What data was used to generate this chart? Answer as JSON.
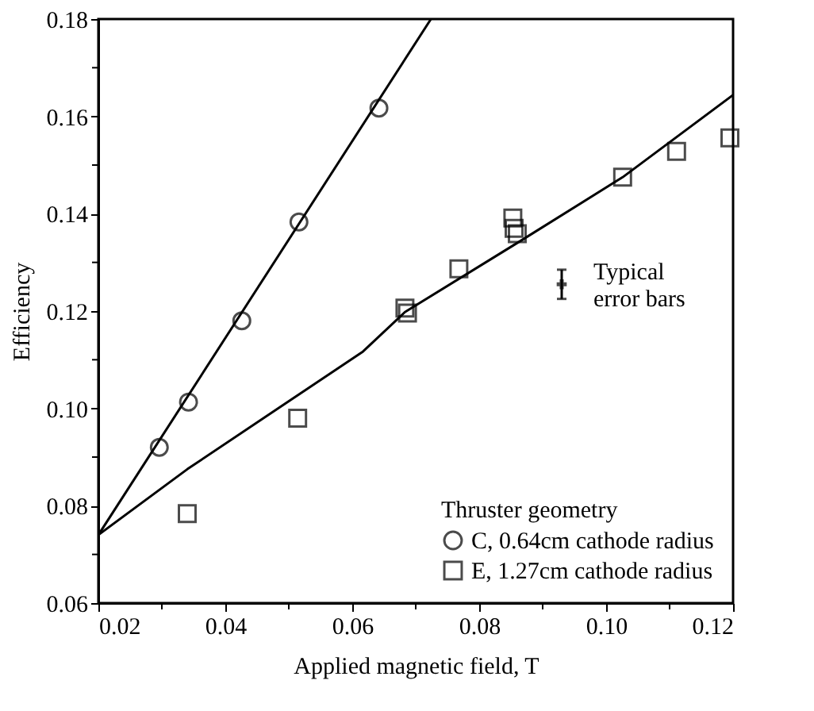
{
  "chart_data": {
    "type": "scatter",
    "xlabel": "Applied magnetic field, T",
    "ylabel": "Efficiency",
    "legend_title": "Thruster geometry",
    "legend": "bottom right",
    "xlim": [
      0.02,
      0.12
    ],
    "ylim": [
      0.06,
      0.18
    ],
    "xticks": [
      0.02,
      {
        "value": 0.03,
        "label": null
      },
      0.04,
      {
        "value": 0.05,
        "label": null
      },
      0.06,
      {
        "value": 0.07,
        "label": null
      },
      0.08,
      {
        "value": 0.09,
        "label": null
      },
      {
        "value": 0.1,
        "label": "0.10"
      },
      {
        "value": 0.11,
        "label": null
      },
      0.12
    ],
    "yticks": [
      0.06,
      {
        "value": 0.07,
        "label": null
      },
      0.08,
      {
        "value": 0.09,
        "label": null
      },
      {
        "value": 0.1,
        "label": "0.10"
      },
      {
        "value": 0.11,
        "label": null
      },
      0.12,
      {
        "value": 0.13,
        "label": null
      },
      0.14,
      {
        "value": 0.15,
        "label": null
      },
      0.16,
      {
        "value": 0.17,
        "label": null
      },
      0.18
    ],
    "grid": false,
    "series": [
      {
        "name": "C, 0.64cm cathode radius",
        "marker": "circle",
        "color": "#000000",
        "x": [
          0.0296,
          0.0342,
          0.0426,
          0.0516,
          0.0642
        ],
        "values": [
          0.092,
          0.1013,
          0.118,
          0.1383,
          0.1617
        ]
      },
      {
        "name": "E, 1.27cm cathode radius",
        "marker": "square",
        "color": "#000000",
        "x": [
          0.034,
          0.0514,
          0.0683,
          0.0687,
          0.0768,
          0.0853,
          0.0855,
          0.086,
          0.1026,
          0.1111,
          0.1195
        ],
        "values": [
          0.0784,
          0.098,
          0.1206,
          0.1196,
          0.1287,
          0.1391,
          0.137,
          0.1359,
          0.1475,
          0.1528,
          0.1556
        ]
      },
      {
        "type": "line",
        "color": "#000000",
        "x": [
          0.02,
          0.0724
        ],
        "values": [
          0.074,
          0.18
        ]
      },
      {
        "type": "line",
        "color": "#000000",
        "x": [
          0.02,
          0.034,
          0.0617,
          0.0683,
          0.086,
          0.1026,
          0.12
        ],
        "values": [
          0.074,
          0.0875,
          0.1117,
          0.1198,
          0.134,
          0.1475,
          0.1644
        ]
      },
      {
        "type": "scatter",
        "marker": "cross",
        "color": "#000000",
        "x": [
          0.093
        ],
        "values": [
          0.1255
        ],
        "errors": [
          0.003
        ]
      }
    ],
    "annotations": [
      {
        "text": "Typical\nerror bars",
        "x": 0.093,
        "y": 0.1255
      }
    ]
  }
}
